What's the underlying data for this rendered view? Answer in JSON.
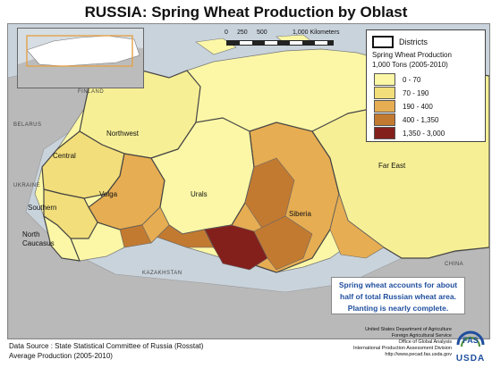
{
  "title": "RUSSIA: Spring Wheat Production by Oblast",
  "scale": {
    "ticks": [
      "0",
      "250",
      "500",
      "1,000 Kilometers"
    ]
  },
  "legend": {
    "districts_label": "Districts",
    "heading_line1": "Spring Wheat Production",
    "heading_line2": "1,000 Tons (2005-2010)",
    "classes": [
      {
        "label": "0 - 70",
        "color": "#fbf7a6"
      },
      {
        "label": "70 - 190",
        "color": "#f2de7a"
      },
      {
        "label": "190 - 400",
        "color": "#e6ad52"
      },
      {
        "label": "400 - 1,350",
        "color": "#c27a31"
      },
      {
        "label": "1,350 - 3,000",
        "color": "#84201c"
      }
    ]
  },
  "regions": {
    "northwest": "Northwest",
    "central": "Central",
    "volga": "Volga",
    "southern": "Southern",
    "north_caucasus_1": "North",
    "north_caucasus_2": "Caucasus",
    "urals": "Urals",
    "siberia": "Siberia",
    "far_east": "Far East"
  },
  "countries": {
    "finland": "FINLAND",
    "belarus": "BELARUS",
    "ukraine": "UKRAINE",
    "kazakhstan": "KAZAKHSTAN",
    "china": "CHINA"
  },
  "callout": {
    "line1": "Spring wheat accounts for about",
    "line2": "half of total Russian wheat area.",
    "line3": "Planting is nearly complete."
  },
  "source": {
    "line1": "Data Source : State Statistical Committee of Russia (Rosstat)",
    "line2": "Average Production (2005-2010)"
  },
  "agency": {
    "line1": "United States Department of Agriculture",
    "line2": "Foreign Agricultural Service",
    "line3": "Office of Global Analysis",
    "line4": "International Production Assessment Division",
    "line5": "http://www.pecad.fas.usda.gov"
  },
  "logo": {
    "top": "FAS",
    "bottom": "USDA"
  }
}
